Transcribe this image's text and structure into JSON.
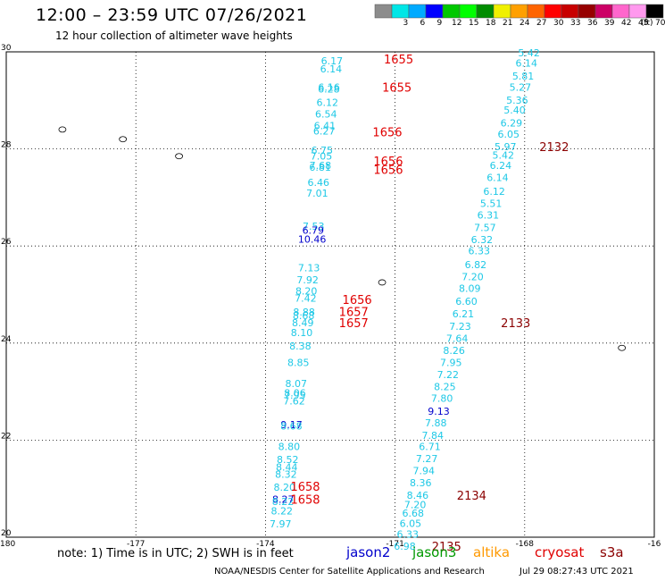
{
  "header": {
    "title": "12:00 – 23:59 UTC 07/26/2021",
    "subtitle": "12 hour collection of altimeter wave heights"
  },
  "legend": {
    "unit": "(ft)",
    "bins": [
      {
        "label": "",
        "color": "#8c8c8c"
      },
      {
        "label": "3",
        "color": "#00e6e6"
      },
      {
        "label": "6",
        "color": "#00aaff"
      },
      {
        "label": "9",
        "color": "#0000ff"
      },
      {
        "label": "12",
        "color": "#00c800"
      },
      {
        "label": "15",
        "color": "#00ff00"
      },
      {
        "label": "18",
        "color": "#008c00"
      },
      {
        "label": "21",
        "color": "#f0f000"
      },
      {
        "label": "24",
        "color": "#ffa000"
      },
      {
        "label": "27",
        "color": "#ff6400"
      },
      {
        "label": "30",
        "color": "#ff0000"
      },
      {
        "label": "33",
        "color": "#c80000"
      },
      {
        "label": "36",
        "color": "#960000"
      },
      {
        "label": "39",
        "color": "#cc0066"
      },
      {
        "label": "42",
        "color": "#ff66cc"
      },
      {
        "label": "45",
        "color": "#ff99ee"
      },
      {
        "label": "70",
        "color": "#000000"
      }
    ]
  },
  "axes": {
    "x_ticks": [
      "-180",
      "-177",
      "-174",
      "-171",
      "-168",
      "-16"
    ],
    "y_ticks": [
      "30",
      "28",
      "26",
      "24",
      "22",
      "20"
    ]
  },
  "colors": {
    "cyan": "#1ec8e6",
    "blue": "#0000cc",
    "red": "#e00000",
    "darkred": "#8b0000"
  },
  "map_data": {
    "lon_range": [
      -180,
      -165
    ],
    "lat_range": [
      20,
      30
    ],
    "track_a": [
      {
        "lat": 29.82,
        "v": "6.17"
      },
      {
        "lat": 29.65,
        "v": "6.14"
      },
      {
        "lat": 29.27,
        "v": "6.16"
      },
      {
        "lat": 29.24,
        "v": "6.28"
      },
      {
        "lat": 28.96,
        "v": "6.12"
      },
      {
        "lat": 28.72,
        "v": "6.54"
      },
      {
        "lat": 28.48,
        "v": "6.41"
      },
      {
        "lat": 28.37,
        "v": "6.27"
      },
      {
        "lat": 27.97,
        "v": "6.75"
      },
      {
        "lat": 27.85,
        "v": "7.05"
      },
      {
        "lat": 27.66,
        "v": "7.68"
      },
      {
        "lat": 27.62,
        "v": "6.81"
      },
      {
        "lat": 27.31,
        "v": "6.46"
      },
      {
        "lat": 27.09,
        "v": "7.01"
      },
      {
        "lat": 26.41,
        "v": "7.53"
      },
      {
        "lat": 26.33,
        "v": "6.79",
        "c": "blue"
      },
      {
        "lat": 26.14,
        "v": "10.46",
        "c": "blue"
      },
      {
        "lat": 25.55,
        "v": "7.13"
      },
      {
        "lat": 25.3,
        "v": "7.92"
      },
      {
        "lat": 25.07,
        "v": "8.20"
      },
      {
        "lat": 24.93,
        "v": "7.42"
      },
      {
        "lat": 24.64,
        "v": "8.88"
      },
      {
        "lat": 24.57,
        "v": "8.68"
      },
      {
        "lat": 24.42,
        "v": "8.49"
      },
      {
        "lat": 24.22,
        "v": "8.10"
      },
      {
        "lat": 23.94,
        "v": "8.38"
      },
      {
        "lat": 23.6,
        "v": "8.85"
      },
      {
        "lat": 23.17,
        "v": "8.07"
      },
      {
        "lat": 22.97,
        "v": "8.06"
      },
      {
        "lat": 22.93,
        "v": "7.95"
      },
      {
        "lat": 22.81,
        "v": "7.62"
      },
      {
        "lat": 22.32,
        "v": "9.17",
        "c": "blue"
      },
      {
        "lat": 22.29,
        "v": "8.68"
      },
      {
        "lat": 21.87,
        "v": "8.80"
      },
      {
        "lat": 21.6,
        "v": "8.52"
      },
      {
        "lat": 21.45,
        "v": "8.44"
      },
      {
        "lat": 21.3,
        "v": "8.32"
      },
      {
        "lat": 21.03,
        "v": "8.20"
      },
      {
        "lat": 20.78,
        "v": "8.27",
        "c": "blue"
      },
      {
        "lat": 20.74,
        "v": "8.22"
      },
      {
        "lat": 20.54,
        "v": "8.22"
      },
      {
        "lat": 20.28,
        "v": "7.97"
      }
    ],
    "track_b": [
      {
        "lat": 29.98,
        "v": "5.42"
      },
      {
        "lat": 29.77,
        "v": "6.14"
      },
      {
        "lat": 29.5,
        "v": "5.81"
      },
      {
        "lat": 29.27,
        "v": "5.27"
      },
      {
        "lat": 29.01,
        "v": "5.36"
      },
      {
        "lat": 28.8,
        "v": "5.40"
      },
      {
        "lat": 28.54,
        "v": "6.29"
      },
      {
        "lat": 28.31,
        "v": "6.05"
      },
      {
        "lat": 28.05,
        "v": "5.97"
      },
      {
        "lat": 27.87,
        "v": "5.42"
      },
      {
        "lat": 27.66,
        "v": "6.24"
      },
      {
        "lat": 27.41,
        "v": "6.14"
      },
      {
        "lat": 27.13,
        "v": "6.12"
      },
      {
        "lat": 26.88,
        "v": "5.51"
      },
      {
        "lat": 26.64,
        "v": "6.31"
      },
      {
        "lat": 26.38,
        "v": "7.57"
      },
      {
        "lat": 26.13,
        "v": "6.32"
      },
      {
        "lat": 25.9,
        "v": "6.33"
      },
      {
        "lat": 25.62,
        "v": "6.82"
      },
      {
        "lat": 25.37,
        "v": "7.20"
      },
      {
        "lat": 25.13,
        "v": "8.09"
      },
      {
        "lat": 24.86,
        "v": "6.60"
      },
      {
        "lat": 24.6,
        "v": "6.21"
      },
      {
        "lat": 24.35,
        "v": "7.23"
      },
      {
        "lat": 24.1,
        "v": "7.64"
      },
      {
        "lat": 23.85,
        "v": "8.26"
      },
      {
        "lat": 23.6,
        "v": "7.95"
      },
      {
        "lat": 23.35,
        "v": "7.22"
      },
      {
        "lat": 23.1,
        "v": "8.25"
      },
      {
        "lat": 22.86,
        "v": "7.80"
      },
      {
        "lat": 22.6,
        "v": "9.13",
        "c": "blue"
      },
      {
        "lat": 22.36,
        "v": "7.88"
      },
      {
        "lat": 22.1,
        "v": "7.84"
      },
      {
        "lat": 21.87,
        "v": "6.71"
      },
      {
        "lat": 21.62,
        "v": "7.27"
      },
      {
        "lat": 21.37,
        "v": "7.94"
      },
      {
        "lat": 21.12,
        "v": "8.36"
      },
      {
        "lat": 20.87,
        "v": "8.46"
      },
      {
        "lat": 20.67,
        "v": "7.20"
      },
      {
        "lat": 20.5,
        "v": "6.68"
      },
      {
        "lat": 20.29,
        "v": "6.05"
      },
      {
        "lat": 20.06,
        "v": "6.33"
      },
      {
        "lat": 19.82,
        "v": "6.98"
      }
    ],
    "time_labels": [
      {
        "lon": -171.26,
        "lat": 29.85,
        "t": "1655",
        "c": "red"
      },
      {
        "lon": -171.3,
        "lat": 29.27,
        "t": "1655",
        "c": "red"
      },
      {
        "lon": -171.52,
        "lat": 28.35,
        "t": "1656",
        "c": "red"
      },
      {
        "lon": -171.5,
        "lat": 27.75,
        "t": "1656",
        "c": "red"
      },
      {
        "lon": -171.5,
        "lat": 27.58,
        "t": "1656",
        "c": "red"
      },
      {
        "lon": -172.22,
        "lat": 24.9,
        "t": "1656",
        "c": "red"
      },
      {
        "lon": -172.3,
        "lat": 24.65,
        "t": "1657",
        "c": "red"
      },
      {
        "lon": -172.3,
        "lat": 24.42,
        "t": "1657",
        "c": "red"
      },
      {
        "lon": -173.42,
        "lat": 21.05,
        "t": "1658",
        "c": "red"
      },
      {
        "lon": -173.42,
        "lat": 20.78,
        "t": "1658",
        "c": "red"
      },
      {
        "lon": -167.66,
        "lat": 28.05,
        "t": "2132",
        "c": "darkred"
      },
      {
        "lon": -168.55,
        "lat": 24.42,
        "t": "2133",
        "c": "darkred"
      },
      {
        "lon": -169.57,
        "lat": 20.87,
        "t": "2134",
        "c": "darkred"
      },
      {
        "lon": -170.15,
        "lat": 19.82,
        "t": "2135",
        "c": "darkred"
      }
    ]
  },
  "footer": {
    "note": "note:  1) Time is in UTC;  2) SWH is in feet",
    "satellites": [
      {
        "name": "jason2",
        "color": "#0000cc"
      },
      {
        "name": "jason3",
        "color": "#009900"
      },
      {
        "name": "altika",
        "color": "#ff9900"
      },
      {
        "name": "cryosat",
        "color": "#e00000"
      },
      {
        "name": "s3a",
        "color": "#8b0000"
      }
    ],
    "credit": "NOAA/NESDIS Center for Satellite Applications and Research",
    "timestamp": "Jul 29 08:27:43 UTC 2021"
  }
}
